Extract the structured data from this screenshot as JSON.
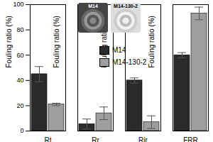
{
  "chart_data": {
    "type": "bar",
    "categories": [
      "Rt",
      "Rr",
      "Rir",
      "FRR"
    ],
    "y_label": "Fouling ratio (%)",
    "ylim": [
      0,
      100
    ],
    "yticks": [
      0,
      20,
      40,
      60,
      80,
      100
    ],
    "legend": "top",
    "series": [
      {
        "name": "M14",
        "color": "#2b2b2b",
        "values": [
          45,
          5.5,
          40,
          60
        ],
        "errors": [
          6,
          4,
          2,
          2
        ]
      },
      {
        "name": "M14-130-2",
        "color": "#9e9e9e",
        "values": [
          21,
          14,
          7,
          93
        ],
        "errors": [
          1,
          5,
          5,
          5
        ]
      }
    ]
  }
}
